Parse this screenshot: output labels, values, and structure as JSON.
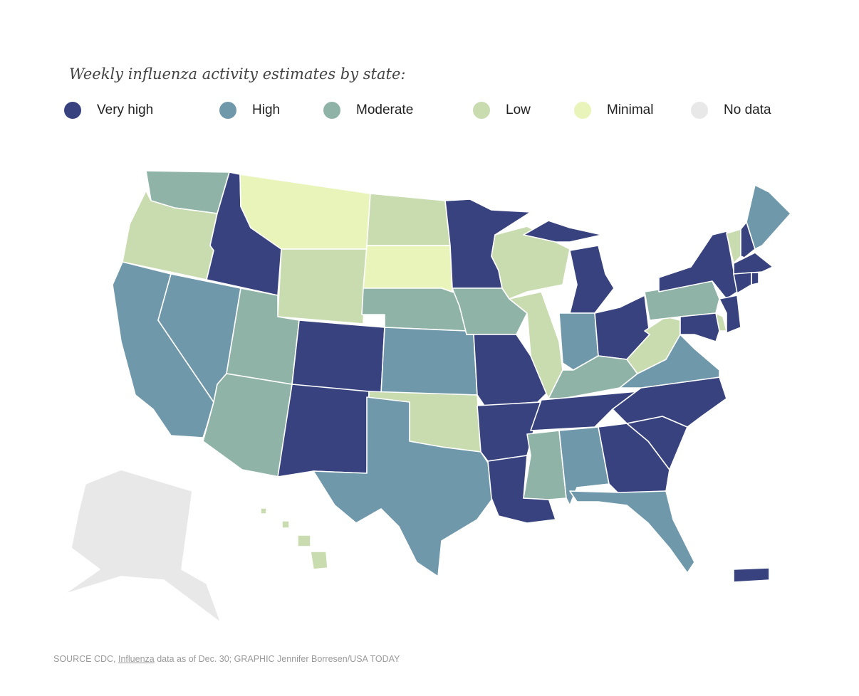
{
  "title": "Weekly influenza activity estimates by state:",
  "legend": [
    {
      "key": "very_high",
      "label": "Very high",
      "color": "#38427f"
    },
    {
      "key": "high",
      "label": "High",
      "color": "#6f98ab"
    },
    {
      "key": "moderate",
      "label": "Moderate",
      "color": "#8fb3a7"
    },
    {
      "key": "low",
      "label": "Low",
      "color": "#c8dcb0"
    },
    {
      "key": "minimal",
      "label": "Minimal",
      "color": "#e9f4bb"
    },
    {
      "key": "no_data",
      "label": "No data",
      "color": "#e8e8e8"
    }
  ],
  "states": {
    "WA": "moderate",
    "OR": "low",
    "CA": "high",
    "NV": "high",
    "ID": "very_high",
    "MT": "minimal",
    "WY": "low",
    "UT": "moderate",
    "AZ": "moderate",
    "CO": "very_high",
    "NM": "very_high",
    "ND": "low",
    "SD": "minimal",
    "NE": "moderate",
    "KS": "high",
    "OK": "low",
    "TX": "high",
    "MN": "very_high",
    "IA": "moderate",
    "MO": "very_high",
    "AR": "very_high",
    "LA": "very_high",
    "WI": "low",
    "IL": "low",
    "MI": "very_high",
    "IN": "high",
    "OH": "very_high",
    "KY": "moderate",
    "TN": "very_high",
    "MS": "moderate",
    "AL": "high",
    "GA": "very_high",
    "FL": "high",
    "SC": "very_high",
    "NC": "very_high",
    "VA": "high",
    "WV": "low",
    "PA": "moderate",
    "NY": "very_high",
    "VT": "low",
    "NH": "very_high",
    "ME": "high",
    "MA": "very_high",
    "RI": "very_high",
    "CT": "very_high",
    "NJ": "very_high",
    "DE": "low",
    "MD": "very_high",
    "AK": "no_data",
    "HI": "low",
    "PR": "very_high"
  },
  "source": {
    "prefix": "SOURCE CDC,",
    "link": "Influenza",
    "suffix": "data as of Dec. 30; GRAPHIC Jennifer Borresen/USA TODAY"
  }
}
